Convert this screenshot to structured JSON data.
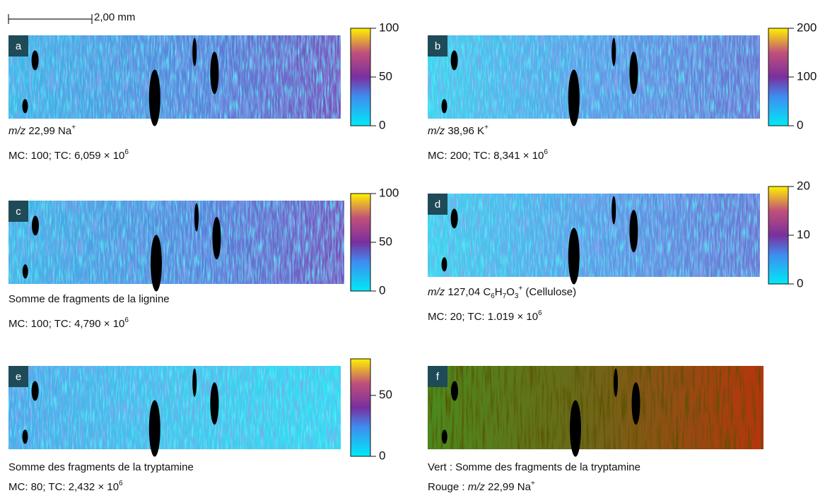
{
  "scale_bar": {
    "label": "2,00 mm"
  },
  "panels": [
    {
      "label": "a",
      "caption": [
        [
          {
            "text": "m/z",
            "style": "italic"
          },
          {
            "text": " 22,99 Na"
          },
          {
            "text": "+",
            "style": "sup"
          }
        ],
        [
          {
            "text": "MC: 100; TC: 6,059 × 10"
          },
          {
            "text": "6",
            "style": "sup"
          }
        ]
      ],
      "colorbar": {
        "lim": [
          0,
          100
        ],
        "ticks": [
          0,
          50,
          100
        ]
      }
    },
    {
      "label": "b",
      "caption": [
        [
          {
            "text": "m/z",
            "style": "italic"
          },
          {
            "text": " 38,96 K"
          },
          {
            "text": "+",
            "style": "sup"
          }
        ],
        [
          {
            "text": "MC: 200; TC: 8,341 × 10"
          },
          {
            "text": "6",
            "style": "sup"
          }
        ]
      ],
      "colorbar": {
        "lim": [
          0,
          200
        ],
        "ticks": [
          0,
          100,
          200
        ]
      }
    },
    {
      "label": "c",
      "caption": [
        [
          {
            "text": "Somme de fragments de la lignine"
          }
        ],
        [
          {
            "text": "MC: 100; TC: 4,790 × 10"
          },
          {
            "text": "6",
            "style": "sup"
          }
        ]
      ],
      "colorbar": {
        "lim": [
          0,
          100
        ],
        "ticks": [
          0,
          50,
          100
        ]
      }
    },
    {
      "label": "d",
      "caption": [
        [
          {
            "text": "m/z",
            "style": "italic"
          },
          {
            "text": " 127,04 C"
          },
          {
            "text": "6",
            "style": "sub"
          },
          {
            "text": "H"
          },
          {
            "text": "7",
            "style": "sub"
          },
          {
            "text": "O"
          },
          {
            "text": "3",
            "style": "sub"
          },
          {
            "text": "+",
            "style": "sup"
          },
          {
            "text": " (Cellulose)"
          }
        ],
        [
          {
            "text": "MC: 20; TC: 1.019 × 10"
          },
          {
            "text": "6",
            "style": "sup"
          }
        ]
      ],
      "colorbar": {
        "lim": [
          0,
          20
        ],
        "ticks": [
          0,
          10,
          20
        ]
      }
    },
    {
      "label": "e",
      "caption": [
        [
          {
            "text": "Somme des fragments de la tryptamine"
          }
        ],
        [
          {
            "text": "MC: 80; TC: 2,432 × 10"
          },
          {
            "text": "6",
            "style": "sup"
          }
        ]
      ],
      "colorbar": {
        "lim": [
          0,
          80
        ],
        "ticks": [
          0,
          50
        ]
      }
    },
    {
      "label": "f",
      "caption": [
        [
          {
            "text": "Vert : Somme des fragments de la tryptamine"
          }
        ],
        [
          {
            "text": "Rouge : "
          },
          {
            "text": "m/z",
            "style": "italic"
          },
          {
            "text": " 22,99 Na"
          },
          {
            "text": "+",
            "style": "sup"
          }
        ]
      ]
    }
  ]
}
